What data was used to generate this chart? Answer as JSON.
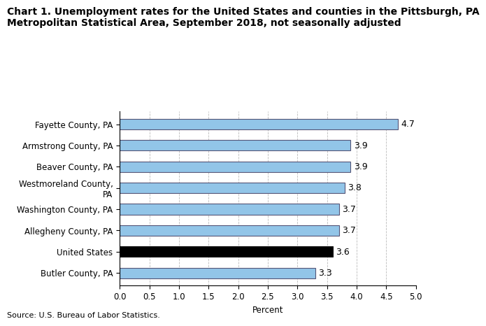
{
  "title_line1": "Chart 1. Unemployment rates for the United States and counties in the Pittsburgh, PA",
  "title_line2": "Metropolitan Statistical Area, September 2018, not seasonally adjusted",
  "categories": [
    "Butler County, PA",
    "United States",
    "Allegheny County, PA",
    "Washington County, PA",
    "Westmoreland County,\nPA",
    "Beaver County, PA",
    "Armstrong County, PA",
    "Fayette County, PA"
  ],
  "values": [
    3.3,
    3.6,
    3.7,
    3.7,
    3.8,
    3.9,
    3.9,
    4.7
  ],
  "bar_colors": [
    "#92C5E8",
    "#000000",
    "#92C5E8",
    "#92C5E8",
    "#92C5E8",
    "#92C5E8",
    "#92C5E8",
    "#92C5E8"
  ],
  "edge_colors": [
    "#555577",
    "#111111",
    "#555577",
    "#555577",
    "#555577",
    "#555577",
    "#555577",
    "#555577"
  ],
  "xlim": [
    0,
    5.0
  ],
  "xticks": [
    0.0,
    0.5,
    1.0,
    1.5,
    2.0,
    2.5,
    3.0,
    3.5,
    4.0,
    4.5,
    5.0
  ],
  "xtick_labels": [
    "0.0",
    "0.5",
    "1.0",
    "1.5",
    "2.0",
    "2.5",
    "3.0",
    "3.5",
    "4.0",
    "4.5",
    "5.0"
  ],
  "xlabel": "Percent",
  "source": "Source: U.S. Bureau of Labor Statistics.",
  "bar_height": 0.5,
  "value_labels": [
    "3.3",
    "3.6",
    "3.7",
    "3.7",
    "3.8",
    "3.9",
    "3.9",
    "4.7"
  ],
  "grid_color": "#bbbbbb",
  "background_color": "#ffffff",
  "title_fontsize": 10,
  "axis_fontsize": 8.5,
  "ytick_fontsize": 8.5,
  "value_fontsize": 9,
  "source_fontsize": 8
}
